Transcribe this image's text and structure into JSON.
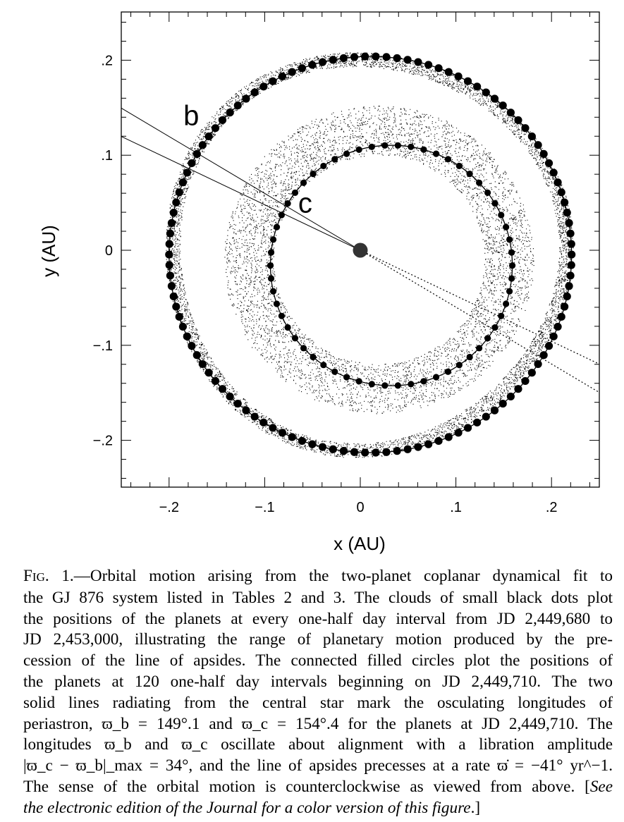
{
  "chart_data": {
    "type": "scatter",
    "xlabel": "x (AU)",
    "ylabel": "y (AU)",
    "xlim": [
      -0.25,
      0.25
    ],
    "ylim": [
      -0.25,
      0.25
    ],
    "x_ticks": [
      {
        "value": -0.2,
        "label": "−.2"
      },
      {
        "value": -0.1,
        "label": "−.1"
      },
      {
        "value": 0,
        "label": "0"
      },
      {
        "value": 0.1,
        "label": ".1"
      },
      {
        "value": 0.2,
        "label": ".2"
      }
    ],
    "y_ticks": [
      {
        "value": 0.2,
        "label": ".2"
      },
      {
        "value": 0.1,
        "label": ".1"
      },
      {
        "value": 0,
        "label": "0"
      },
      {
        "value": -0.1,
        "label": "−.1"
      },
      {
        "value": -0.2,
        "label": "−.2"
      }
    ],
    "grid": false,
    "star": {
      "x": 0,
      "y": 0
    },
    "planets": [
      {
        "label": "b",
        "center": [
          0.0105,
          -0.0045
        ],
        "semi_major": 0.2105,
        "semi_minor": 0.2085,
        "periastron_deg": 149.1,
        "cloud_inner_au": 0.198,
        "cloud_outer_au": 0.213,
        "label_pos": [
          -0.185,
          0.142
        ]
      },
      {
        "label": "c",
        "center": [
          0.0325,
          -0.016
        ],
        "semi_major": 0.1265,
        "semi_minor": 0.1265,
        "periastron_deg": 154.4,
        "cloud_inner_au": 0.11,
        "cloud_outer_au": 0.162,
        "label_pos": [
          -0.065,
          0.05
        ]
      }
    ],
    "periastron_lines": [
      {
        "planet": "b",
        "angle_deg": 149.1
      },
      {
        "planet": "c",
        "angle_deg": 154.4
      }
    ]
  },
  "caption": {
    "fig_prefix": "F",
    "fig_prefix_sc": "IG",
    "fig_number": ". 1.",
    "lines": [
      "—Orbital motion arising from the two-planet coplanar dynamical fit to",
      "the GJ 876 system listed in Tables 2 and 3. The clouds of small black dots plot",
      "the positions of the planets at every one-half day interval from JD 2,449,680 to",
      "JD 2,453,000, illustrating the range of planetary motion produced by the pre-",
      "cession of the line of apsides. The connected filled circles plot the positions of",
      "the planets at 120 one-half day intervals beginning on JD 2,449,710. The two",
      "solid lines radiating from the central star mark the osculating longitudes of",
      "periastron, ϖ_b = 149°.1 and ϖ_c = 154°.4 for the planets at JD 2,449,710. The",
      "longitudes ϖ_b and ϖ_c oscillate about alignment with a libration amplitude",
      "|ϖ_c − ϖ_b|_max = 34°, and the line of apsides precesses at a rate ϖ̇ = −41° yr^−1.",
      "The sense of the orbital motion is counterclockwise as viewed from above. ["
    ],
    "italic_tail_1": "See",
    "italic_tail_2": "the electronic edition of the Journal for a color version of this figure",
    "end": ".]"
  }
}
